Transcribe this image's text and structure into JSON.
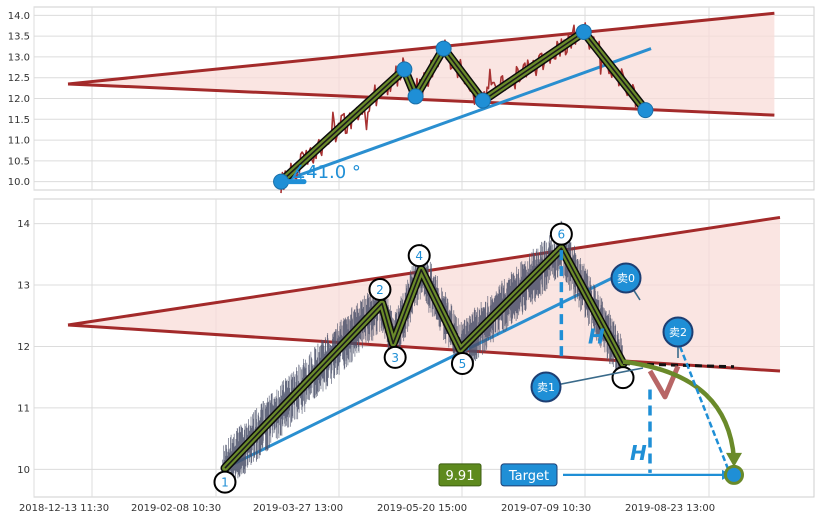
{
  "chart_data": [
    {
      "type": "line",
      "panel": "top",
      "title": "",
      "ylim": [
        9.8,
        14.2
      ],
      "yticks": [
        "10.0",
        "10.5",
        "11.0",
        "11.5",
        "12.0",
        "12.5",
        "13.0",
        "13.5",
        "14.0"
      ],
      "ytick_values": [
        10.0,
        10.5,
        11.0,
        11.5,
        12.0,
        12.5,
        13.0,
        13.5,
        14.0
      ],
      "grid": true,
      "pivots": [
        {
          "t": 38,
          "y": 10.0
        },
        {
          "t": 60,
          "y": 12.7
        },
        {
          "t": 62,
          "y": 12.05
        },
        {
          "t": 67,
          "y": 13.2
        },
        {
          "t": 74,
          "y": 11.95
        },
        {
          "t": 92,
          "y": 13.6
        },
        {
          "t": 103,
          "y": 11.72
        }
      ],
      "upper_line": [
        {
          "t": 0,
          "y": 12.35
        },
        {
          "t": 126,
          "y": 14.05
        }
      ],
      "lower_line": [
        {
          "t": 0,
          "y": 12.35
        },
        {
          "t": 126,
          "y": 11.6
        }
      ],
      "support_line": [
        {
          "t": 38,
          "y": 10.0
        },
        {
          "t": 104,
          "y": 13.2
        }
      ],
      "angle_label": "∡41.0 °",
      "price_series_color": "#a83232",
      "zigzag_color": "#6a8a2a",
      "marker_color": "#1f8fd6",
      "triangle_fill": "#f8dcd8",
      "trend_color": "#a32a2a"
    },
    {
      "type": "line",
      "panel": "bottom",
      "title": "",
      "ylim": [
        9.55,
        14.4
      ],
      "yticks": [
        "10",
        "11",
        "12",
        "13",
        "14"
      ],
      "ytick_values": [
        10,
        11,
        12,
        13,
        14
      ],
      "grid": true,
      "x_ticks": [
        "2018-12-13 11:30",
        "2019-02-08 10:30",
        "2019-03-27 13:00",
        "2019-05-20 15:00",
        "2019-07-09 10:30",
        "2019-08-23 13:00"
      ],
      "x_tick_positions": [
        0,
        20,
        40,
        60,
        80,
        100
      ],
      "xlim": [
        0,
        127
      ],
      "pivots": [
        {
          "label": "1",
          "t": 28,
          "y": 10.02
        },
        {
          "label": "2",
          "t": 56,
          "y": 12.7
        },
        {
          "label": "3",
          "t": 58,
          "y": 12.05
        },
        {
          "label": "4",
          "t": 63,
          "y": 13.25
        },
        {
          "label": "5",
          "t": 70,
          "y": 11.95
        },
        {
          "label": "6",
          "t": 88,
          "y": 13.6
        },
        {
          "label": "",
          "t": 99,
          "y": 11.72
        }
      ],
      "upper_line": [
        {
          "t": 0,
          "y": 12.35
        },
        {
          "t": 127,
          "y": 14.1
        }
      ],
      "lower_line": [
        {
          "t": 0,
          "y": 12.35
        },
        {
          "t": 127,
          "y": 11.6
        }
      ],
      "support_line": [
        {
          "t": 28,
          "y": 10.02
        },
        {
          "t": 99,
          "y": 13.2
        }
      ],
      "sell_signals": [
        {
          "label": "卖0",
          "t": 95,
          "y": 13.15
        },
        {
          "label": "卖1",
          "t": 82,
          "y": 11.32
        },
        {
          "label": "卖2",
          "t": 104,
          "y": 12.23
        }
      ],
      "height_label": "H",
      "target_value": "9.91",
      "target_label": "Target",
      "target_y": 9.91,
      "price_series_color": "#4a5068",
      "zigzag_color": "#6a8a2a",
      "marker_color": "#1f8fd6",
      "triangle_fill": "#f8dcd8",
      "trend_color": "#a32a2a",
      "arrow_color": "#6a8a2a",
      "target_box_color": "#5e8a1e"
    }
  ]
}
